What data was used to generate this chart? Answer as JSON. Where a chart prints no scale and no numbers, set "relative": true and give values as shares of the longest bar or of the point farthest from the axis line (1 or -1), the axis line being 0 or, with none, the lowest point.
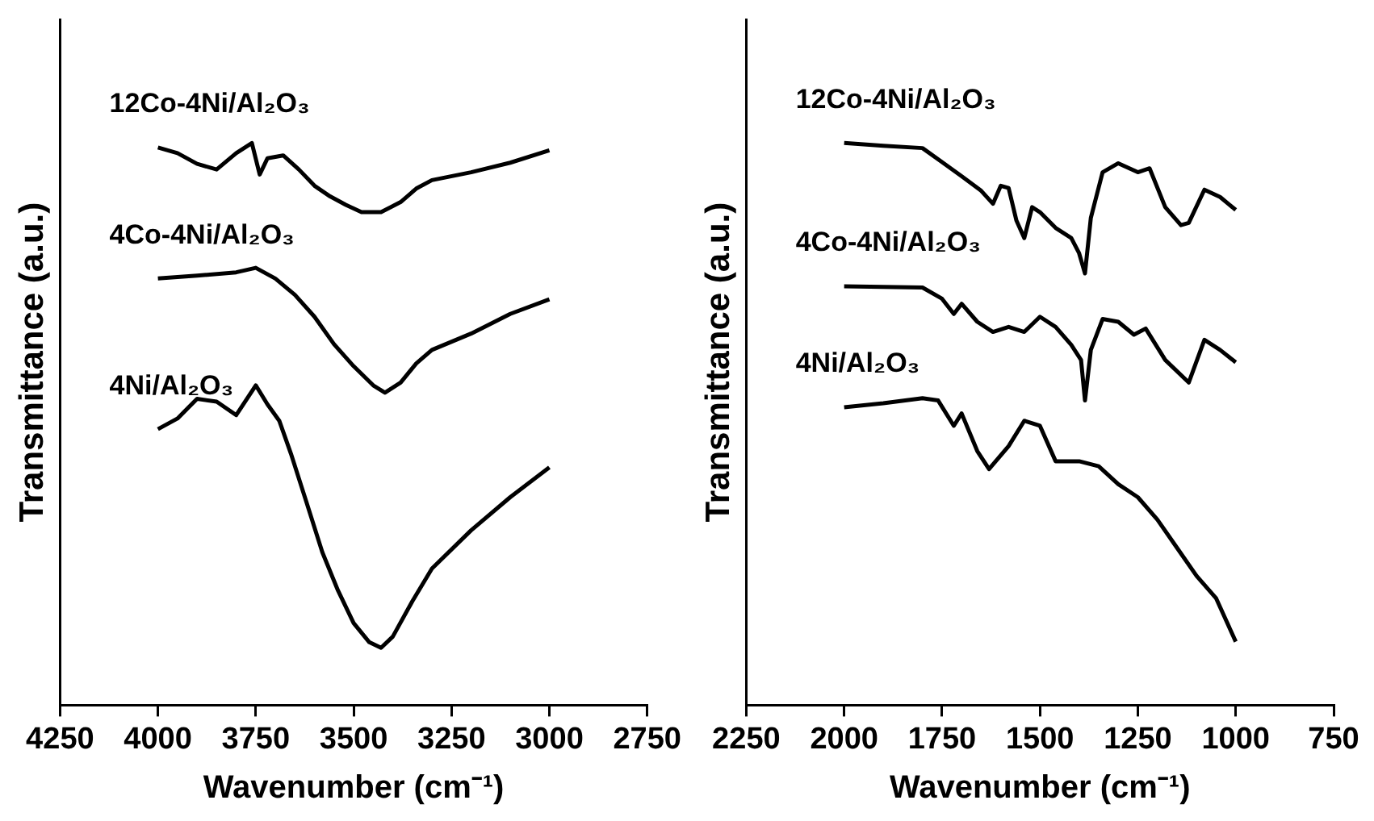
{
  "chart_data": [
    {
      "type": "line",
      "xlabel": "Wavenumber (cm⁻¹)",
      "ylabel": "Transmittance (a.u.)",
      "xlim": [
        4250,
        2750
      ],
      "xticks": [
        4250,
        4000,
        3750,
        3500,
        3250,
        3000,
        2750
      ],
      "relative": true,
      "grid": false,
      "legend": false,
      "marker": "none",
      "line_style": "solid",
      "series": [
        {
          "name": "12Co-4Ni/Al₂O₃",
          "color": "#000000",
          "x": [
            4000,
            3950,
            3900,
            3850,
            3800,
            3760,
            3740,
            3720,
            3680,
            3640,
            3600,
            3560,
            3520,
            3480,
            3430,
            3380,
            3340,
            3300,
            3200,
            3100,
            3000
          ],
          "values": [
            0.992,
            0.982,
            0.963,
            0.953,
            0.982,
            1.0,
            0.944,
            0.973,
            0.978,
            0.953,
            0.924,
            0.905,
            0.89,
            0.877,
            0.877,
            0.895,
            0.919,
            0.934,
            0.948,
            0.965,
            0.987
          ]
        },
        {
          "name": "4Co-4Ni/Al₂O₃",
          "color": "#000000",
          "x": [
            4000,
            3900,
            3800,
            3750,
            3700,
            3650,
            3600,
            3550,
            3500,
            3450,
            3420,
            3380,
            3340,
            3300,
            3200,
            3100,
            3000
          ],
          "values": [
            0.759,
            0.764,
            0.77,
            0.778,
            0.759,
            0.73,
            0.691,
            0.642,
            0.603,
            0.569,
            0.556,
            0.574,
            0.608,
            0.632,
            0.661,
            0.696,
            0.722
          ]
        },
        {
          "name": "4Ni/Al₂O₃",
          "color": "#000000",
          "x": [
            4000,
            3950,
            3900,
            3850,
            3800,
            3750,
            3720,
            3690,
            3660,
            3620,
            3580,
            3540,
            3500,
            3460,
            3430,
            3400,
            3350,
            3300,
            3200,
            3100,
            3000
          ],
          "values": [
            0.491,
            0.51,
            0.545,
            0.54,
            0.516,
            0.569,
            0.535,
            0.506,
            0.447,
            0.36,
            0.272,
            0.204,
            0.146,
            0.112,
            0.102,
            0.122,
            0.185,
            0.243,
            0.311,
            0.37,
            0.423
          ]
        }
      ]
    },
    {
      "type": "line",
      "xlabel": "Wavenumber (cm⁻¹)",
      "ylabel": "Transmittance (a.u.)",
      "xlim": [
        2250,
        750
      ],
      "xticks": [
        2250,
        2000,
        1750,
        1500,
        1250,
        1000,
        750
      ],
      "relative": true,
      "grid": false,
      "legend": false,
      "marker": "none",
      "line_style": "solid",
      "series": [
        {
          "name": "12Co-4Ni/Al₂O₃",
          "color": "#000000",
          "x": [
            2000,
            1900,
            1800,
            1750,
            1700,
            1650,
            1620,
            1600,
            1580,
            1560,
            1540,
            1520,
            1500,
            1460,
            1420,
            1400,
            1385,
            1370,
            1340,
            1300,
            1250,
            1220,
            1180,
            1140,
            1120,
            1080,
            1040,
            1000
          ],
          "values": [
            1.0,
            0.995,
            0.991,
            0.966,
            0.941,
            0.915,
            0.892,
            0.924,
            0.92,
            0.862,
            0.831,
            0.886,
            0.877,
            0.849,
            0.831,
            0.804,
            0.768,
            0.867,
            0.948,
            0.964,
            0.948,
            0.955,
            0.886,
            0.854,
            0.858,
            0.917,
            0.904,
            0.881
          ]
        },
        {
          "name": "4Co-4Ni/Al₂O₃",
          "color": "#000000",
          "x": [
            2000,
            1900,
            1800,
            1750,
            1720,
            1700,
            1660,
            1620,
            1580,
            1540,
            1500,
            1460,
            1420,
            1395,
            1385,
            1370,
            1340,
            1300,
            1260,
            1230,
            1180,
            1120,
            1080,
            1040,
            1000
          ],
          "values": [
            0.745,
            0.744,
            0.743,
            0.723,
            0.696,
            0.714,
            0.682,
            0.664,
            0.673,
            0.664,
            0.691,
            0.673,
            0.641,
            0.614,
            0.542,
            0.632,
            0.687,
            0.682,
            0.659,
            0.67,
            0.614,
            0.574,
            0.65,
            0.632,
            0.61
          ]
        },
        {
          "name": "4Ni/Al₂O₃",
          "color": "#000000",
          "x": [
            2000,
            1900,
            1800,
            1760,
            1720,
            1700,
            1660,
            1630,
            1580,
            1540,
            1500,
            1460,
            1400,
            1350,
            1300,
            1250,
            1200,
            1150,
            1100,
            1050,
            1000
          ],
          "values": [
            0.53,
            0.537,
            0.546,
            0.542,
            0.497,
            0.519,
            0.452,
            0.42,
            0.461,
            0.506,
            0.497,
            0.434,
            0.434,
            0.425,
            0.393,
            0.37,
            0.33,
            0.28,
            0.23,
            0.19,
            0.113
          ]
        }
      ]
    }
  ]
}
